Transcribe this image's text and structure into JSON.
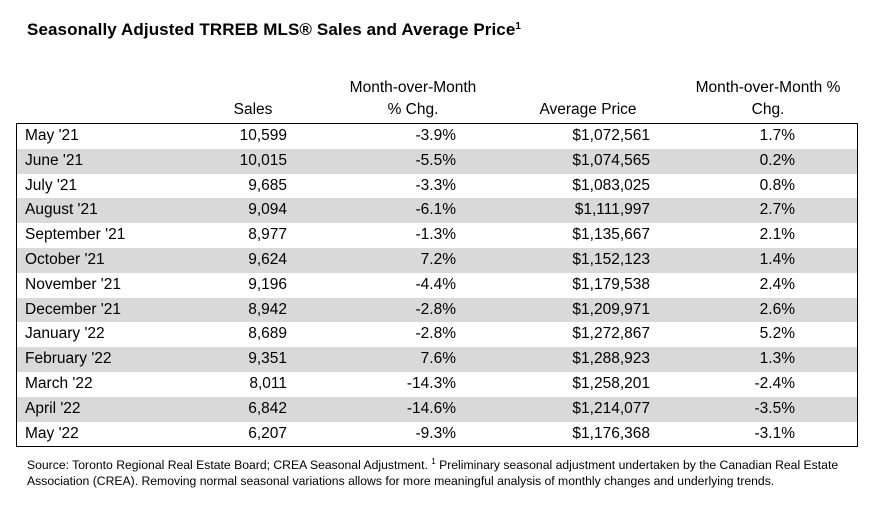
{
  "title": "Seasonally Adjusted TRREB MLS® Sales and Average Price",
  "title_superscript": "1",
  "columns": {
    "sales": "Sales",
    "mom_sales_line1": "Month-over-Month",
    "mom_sales_line2": "% Chg.",
    "avg_price": "Average Price",
    "mom_price_line1": "Month-over-Month %",
    "mom_price_line2": "Chg."
  },
  "rows": [
    {
      "month": "May '21",
      "sales": "10,599",
      "mom_sales": "-3.9%",
      "avg_price": "$1,072,561",
      "mom_price": "1.7%"
    },
    {
      "month": "June '21",
      "sales": "10,015",
      "mom_sales": "-5.5%",
      "avg_price": "$1,074,565",
      "mom_price": "0.2%"
    },
    {
      "month": "July '21",
      "sales": "9,685",
      "mom_sales": "-3.3%",
      "avg_price": "$1,083,025",
      "mom_price": "0.8%"
    },
    {
      "month": "August '21",
      "sales": "9,094",
      "mom_sales": "-6.1%",
      "avg_price": "$1,111,997",
      "mom_price": "2.7%"
    },
    {
      "month": "September '21",
      "sales": "8,977",
      "mom_sales": "-1.3%",
      "avg_price": "$1,135,667",
      "mom_price": "2.1%"
    },
    {
      "month": "October '21",
      "sales": "9,624",
      "mom_sales": "7.2%",
      "avg_price": "$1,152,123",
      "mom_price": "1.4%"
    },
    {
      "month": "November '21",
      "sales": "9,196",
      "mom_sales": "-4.4%",
      "avg_price": "$1,179,538",
      "mom_price": "2.4%"
    },
    {
      "month": "December '21",
      "sales": "8,942",
      "mom_sales": "-2.8%",
      "avg_price": "$1,209,971",
      "mom_price": "2.6%"
    },
    {
      "month": "January '22",
      "sales": "8,689",
      "mom_sales": "-2.8%",
      "avg_price": "$1,272,867",
      "mom_price": "5.2%"
    },
    {
      "month": "February '22",
      "sales": "9,351",
      "mom_sales": "7.6%",
      "avg_price": "$1,288,923",
      "mom_price": "1.3%"
    },
    {
      "month": "March '22",
      "sales": "8,011",
      "mom_sales": "-14.3%",
      "avg_price": "$1,258,201",
      "mom_price": "-2.4%"
    },
    {
      "month": "April '22",
      "sales": "6,842",
      "mom_sales": "-14.6%",
      "avg_price": "$1,214,077",
      "mom_price": "-3.5%"
    },
    {
      "month": "May '22",
      "sales": "6,207",
      "mom_sales": "-9.3%",
      "avg_price": "$1,176,368",
      "mom_price": "-3.1%"
    }
  ],
  "source": {
    "part1": "Source: Toronto Regional Real Estate Board; CREA Seasonal Adjustment. ",
    "superscript": "1",
    "part2": " Preliminary seasonal adjustment undertaken by the Canadian Real Estate Association (CREA).  Removing normal seasonal variations allows for more meaningful analysis of monthly changes and underlying trends."
  },
  "colors": {
    "alt_row": "#d9d9d9",
    "border": "#000000"
  }
}
